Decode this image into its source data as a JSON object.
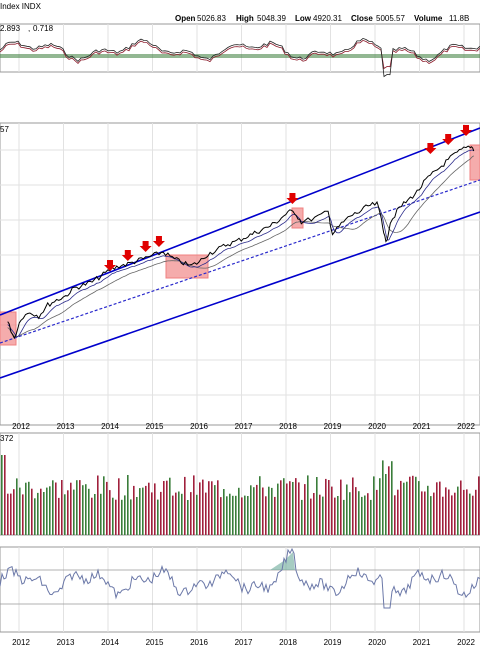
{
  "header": {
    "index_label": "Index INDX",
    "open_label": "Open",
    "open": "5026.83",
    "high_label": "High",
    "high": "5048.39",
    "low_label": "Low",
    "low": "4920.31",
    "close_label": "Close",
    "close": "5005.57",
    "volume_label": "Volume",
    "volume": "11.8B"
  },
  "macd_panel": {
    "value_a": "2.893",
    "sep": ",",
    "value_b": "0.718"
  },
  "price_panel": {
    "corner_label": "57"
  },
  "volume_panel": {
    "corner_label": "372"
  },
  "colors": {
    "channel": "#0000cc",
    "midline": "#2a2acc",
    "price": "#000000",
    "ma": "#666666",
    "highlight": "#f08080",
    "arrow": "#e00000",
    "vol_up": "#3a7d3a",
    "vol_down": "#a0203c",
    "rsi": "#6b78a8",
    "macd": "#8b1a2a"
  },
  "chart_data": [
    {
      "type": "line",
      "panel": "macd",
      "values_shown": [
        "2.893",
        "0.718"
      ]
    },
    {
      "type": "line",
      "panel": "price",
      "x_ticks": [
        "2012",
        "2013",
        "2014",
        "2015",
        "2016",
        "2017",
        "2018",
        "2019",
        "2020",
        "2021",
        "2022"
      ],
      "series": [
        {
          "x": [
            2011.7,
            2011.85,
            2012.0,
            2012.2,
            2012.4,
            2012.6,
            2012.8,
            2013.0,
            2013.2,
            2013.4,
            2013.6,
            2013.8,
            2014.0,
            2014.2,
            2014.4,
            2014.6,
            2014.8,
            2015.0,
            2015.2,
            2015.4,
            2015.6,
            2015.8,
            2016.0,
            2016.2,
            2016.4,
            2016.6,
            2016.8,
            2017.0,
            2017.2,
            2017.4,
            2017.6,
            2017.8,
            2018.0,
            2018.15,
            2018.3,
            2018.6,
            2018.9,
            2019.0,
            2019.2,
            2019.4,
            2019.6,
            2019.8,
            2020.0,
            2020.1,
            2020.2,
            2020.3,
            2020.5,
            2020.7,
            2020.9,
            2021.1,
            2021.3,
            2021.5,
            2021.7,
            2021.9,
            2022.1,
            2022.2
          ],
          "y": [
            322,
            338,
            318,
            312,
            316,
            305,
            300,
            296,
            288,
            285,
            282,
            276,
            270,
            266,
            264,
            261,
            258,
            255,
            252,
            258,
            262,
            266,
            262,
            254,
            250,
            245,
            242,
            238,
            234,
            230,
            226,
            220,
            212,
            212,
            222,
            218,
            212,
            234,
            224,
            216,
            212,
            206,
            204,
            218,
            244,
            222,
            208,
            200,
            192,
            180,
            172,
            164,
            156,
            150,
            146,
            150
          ]
        }
      ],
      "arrows_at_x": [
        2014.0,
        2014.4,
        2014.8,
        2015.1,
        2018.1,
        2021.2,
        2021.6,
        2022.0
      ],
      "highlight_ranges_x": [
        [
          2011.7,
          2012.0
        ],
        [
          2015.3,
          2016.2
        ],
        [
          2018.0,
          2018.3
        ],
        [
          2022.1,
          2022.3
        ]
      ]
    },
    {
      "type": "bar",
      "panel": "volume",
      "note": "volume histogram, red/green bars"
    },
    {
      "type": "line",
      "panel": "rsi",
      "note": "oscillator panel"
    }
  ]
}
